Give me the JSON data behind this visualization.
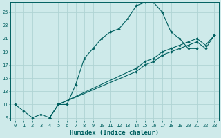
{
  "xlabel": "Humidex (Indice chaleur)",
  "xlim": [
    -0.5,
    23.5
  ],
  "ylim": [
    8.5,
    26.5
  ],
  "xticks": [
    0,
    1,
    2,
    3,
    4,
    5,
    6,
    7,
    8,
    9,
    10,
    11,
    12,
    13,
    14,
    15,
    16,
    17,
    18,
    19,
    20,
    21,
    22,
    23
  ],
  "yticks": [
    9,
    11,
    13,
    15,
    17,
    19,
    21,
    23,
    25
  ],
  "background_color": "#ceeaea",
  "grid_color": "#b0d4d4",
  "line_color": "#006060",
  "curves": [
    {
      "x": [
        0,
        1,
        2,
        3,
        4,
        5,
        6,
        7,
        8,
        9,
        10,
        11,
        12,
        13,
        14,
        15,
        16,
        17,
        18,
        19,
        20,
        21
      ],
      "y": [
        11,
        10,
        9,
        9.5,
        9,
        11,
        11,
        14,
        18,
        19.5,
        21,
        22,
        22.5,
        24,
        26,
        26.5,
        26.5,
        25,
        22,
        21,
        19.5,
        19.5
      ]
    },
    {
      "x": [
        4,
        5,
        14,
        15,
        16,
        17,
        18,
        19,
        20,
        21,
        22,
        23
      ],
      "y": [
        9,
        11,
        16,
        17,
        17.5,
        18.5,
        19,
        19.5,
        20,
        20.5,
        19.5,
        21.5
      ]
    },
    {
      "x": [
        4,
        5,
        14,
        15,
        16,
        17,
        18,
        19,
        20,
        21,
        22,
        23
      ],
      "y": [
        9,
        11,
        16.5,
        17.5,
        18,
        19,
        19.5,
        20,
        20.5,
        21,
        20,
        21.5
      ]
    }
  ]
}
